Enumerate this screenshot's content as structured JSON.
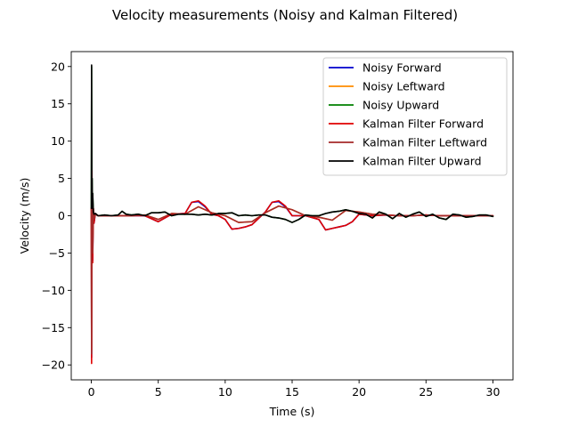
{
  "chart_data": {
    "type": "line",
    "title": "Velocity measurements (Noisy and Kalman Filtered)",
    "xlabel": "Time (s)",
    "ylabel": "Velocity (m/s)",
    "xlim": [
      -1.5,
      31.5
    ],
    "ylim": [
      -22,
      22
    ],
    "xticks": [
      0,
      5,
      10,
      15,
      20,
      25,
      30
    ],
    "yticks": [
      -20,
      -15,
      -10,
      -5,
      0,
      5,
      10,
      15,
      20
    ],
    "xtick_labels": [
      "0",
      "5",
      "10",
      "15",
      "20",
      "25",
      "30"
    ],
    "ytick_labels": [
      "−20",
      "−15",
      "−10",
      "−5",
      "0",
      "5",
      "10",
      "15",
      "20"
    ],
    "grid": false,
    "legend_position": "top-right",
    "series": [
      {
        "name": "Noisy Forward",
        "color": "#0000cd",
        "x": [
          0,
          0.02,
          0.04,
          0.06,
          0.08,
          0.1,
          0.15,
          0.2,
          0.3,
          0.5,
          1,
          2,
          3,
          4,
          5,
          6,
          7,
          7.5,
          8,
          8.5,
          9,
          9.5,
          10,
          10.5,
          11,
          11.5,
          12,
          13,
          13.5,
          14,
          14.5,
          15,
          15.5,
          16,
          17,
          17.5,
          18,
          18.5,
          19,
          19.5,
          20,
          21,
          22,
          23,
          24,
          25,
          26,
          27,
          28,
          29,
          30
        ],
        "y": [
          1,
          -19,
          6,
          -5,
          3,
          -6,
          1,
          -1,
          0.3,
          0,
          0,
          0,
          0,
          0,
          -0.8,
          0.2,
          0.3,
          1.8,
          1.9,
          1.2,
          0.2,
          0,
          -0.5,
          -1.8,
          -1.7,
          -1.5,
          -1.2,
          0.5,
          1.8,
          1.9,
          1.2,
          0,
          0,
          0,
          -0.5,
          -1.9,
          -1.7,
          -1.5,
          -1.3,
          -0.8,
          0.2,
          0,
          0.1,
          0,
          0,
          0.1,
          0,
          0,
          0,
          0,
          0
        ]
      },
      {
        "name": "Noisy Leftward",
        "color": "#ff8c00",
        "x": [
          0,
          0.02,
          0.04,
          0.06,
          0.08,
          0.1,
          0.15,
          0.2,
          0.3,
          0.5,
          1,
          2,
          3,
          4,
          5,
          6,
          7,
          8,
          9,
          10,
          11,
          12,
          13,
          14,
          15,
          16,
          17,
          18,
          19,
          20,
          21,
          22,
          23,
          24,
          25,
          26,
          27,
          28,
          29,
          30
        ],
        "y": [
          1,
          -18,
          5,
          -4,
          2,
          -5,
          1,
          -0.5,
          0.2,
          0,
          0,
          0,
          0,
          0.1,
          -0.5,
          0.3,
          0.2,
          1.2,
          0.4,
          0,
          -0.9,
          -0.8,
          0.4,
          1.3,
          0.8,
          0,
          -0.2,
          -0.6,
          0.7,
          0.5,
          0.2,
          0.1,
          0,
          0,
          0.1,
          0,
          0,
          0,
          0,
          0
        ]
      },
      {
        "name": "Noisy Upward",
        "color": "#008000",
        "x": [
          0,
          0.02,
          0.04,
          0.06,
          0.08,
          0.1,
          0.15,
          0.2,
          0.3,
          0.5,
          1,
          1.5,
          2,
          2.3,
          2.6,
          3,
          3.5,
          4,
          4.5,
          5,
          5.5,
          6,
          6.5,
          7,
          7.5,
          8,
          8.5,
          9,
          9.5,
          10,
          10.5,
          11,
          11.5,
          12,
          12.5,
          13,
          13.5,
          14,
          14.5,
          15,
          15.5,
          16,
          16.5,
          17,
          17.5,
          18,
          18.5,
          19,
          19.5,
          20,
          20.5,
          21,
          21.5,
          22,
          22.5,
          23,
          23.5,
          24,
          24.5,
          25,
          25.5,
          26,
          26.5,
          27,
          27.5,
          28,
          28.5,
          29,
          29.5,
          30
        ],
        "y": [
          1,
          20,
          2,
          5,
          1,
          3,
          0.5,
          0.2,
          0.3,
          0,
          0.1,
          0,
          0.1,
          0.6,
          0.2,
          0.1,
          0.2,
          0,
          0.4,
          0.4,
          0.5,
          0,
          0.2,
          0.2,
          0.2,
          0.1,
          0.2,
          0.1,
          0.3,
          0.3,
          0.4,
          0,
          0.1,
          0,
          0.1,
          0.1,
          -0.2,
          -0.3,
          -0.5,
          -0.9,
          -0.5,
          0.1,
          0,
          0,
          0.3,
          0.5,
          0.6,
          0.8,
          0.6,
          0.3,
          0.2,
          -0.3,
          0.5,
          0.2,
          -0.4,
          0.3,
          -0.2,
          0.2,
          0.5,
          -0.1,
          0.2,
          -0.3,
          -0.5,
          0.2,
          0.1,
          -0.2,
          -0.1,
          0.1,
          0.1,
          -0.1
        ]
      },
      {
        "name": "Kalman Filter Forward",
        "color": "#e00000",
        "x": [
          0,
          0.02,
          0.04,
          0.06,
          0.08,
          0.1,
          0.15,
          0.2,
          0.3,
          0.5,
          1,
          2,
          3,
          4,
          5,
          6,
          7,
          7.5,
          8,
          8.5,
          9,
          9.5,
          10,
          10.5,
          11,
          11.5,
          12,
          13,
          13.5,
          14,
          14.5,
          15,
          15.5,
          16,
          17,
          17.5,
          18,
          18.5,
          19,
          19.5,
          20,
          21,
          22,
          23,
          24,
          25,
          26,
          27,
          28,
          29,
          30
        ],
        "y": [
          1,
          -19.8,
          6,
          -5,
          3,
          -6.3,
          1,
          -1,
          0.3,
          0,
          0,
          0,
          0,
          0,
          -0.8,
          0.2,
          0.3,
          1.8,
          2,
          1.3,
          0.2,
          0,
          -0.5,
          -1.8,
          -1.7,
          -1.5,
          -1.2,
          0.5,
          1.8,
          2,
          1.3,
          0,
          0,
          0,
          -0.5,
          -1.9,
          -1.7,
          -1.5,
          -1.3,
          -0.8,
          0.2,
          0,
          0.1,
          0,
          0,
          0.1,
          0,
          0,
          0,
          0,
          0
        ]
      },
      {
        "name": "Kalman Filter Leftward",
        "color": "#a52a2a",
        "x": [
          0,
          0.02,
          0.04,
          0.06,
          0.08,
          0.1,
          0.15,
          0.2,
          0.3,
          0.5,
          1,
          2,
          3,
          4,
          5,
          6,
          7,
          8,
          9,
          10,
          11,
          12,
          13,
          14,
          15,
          16,
          17,
          18,
          19,
          20,
          21,
          22,
          23,
          24,
          25,
          26,
          27,
          28,
          29,
          30
        ],
        "y": [
          1,
          -18.5,
          5,
          -4,
          2,
          -5,
          1,
          -0.5,
          0.2,
          0,
          0,
          0,
          0,
          0.1,
          -0.5,
          0.3,
          0.2,
          1.2,
          0.4,
          0,
          -0.9,
          -0.8,
          0.4,
          1.3,
          0.8,
          0,
          -0.2,
          -0.6,
          0.7,
          0.5,
          0.2,
          0.1,
          0,
          0,
          0.1,
          0,
          0,
          0,
          0,
          0
        ]
      },
      {
        "name": "Kalman Filter Upward",
        "color": "#000000",
        "x": [
          0,
          0.02,
          0.04,
          0.06,
          0.08,
          0.1,
          0.15,
          0.2,
          0.3,
          0.5,
          1,
          1.5,
          2,
          2.3,
          2.6,
          3,
          3.5,
          4,
          4.5,
          5,
          5.5,
          6,
          6.5,
          7,
          7.5,
          8,
          8.5,
          9,
          9.5,
          10,
          10.5,
          11,
          11.5,
          12,
          12.5,
          13,
          13.5,
          14,
          14.5,
          15,
          15.5,
          16,
          16.5,
          17,
          17.5,
          18,
          18.5,
          19,
          19.5,
          20,
          20.5,
          21,
          21.5,
          22,
          22.5,
          23,
          23.5,
          24,
          24.5,
          25,
          25.5,
          26,
          26.5,
          27,
          27.5,
          28,
          28.5,
          29,
          29.5,
          30
        ],
        "y": [
          1,
          20.2,
          2,
          5,
          1,
          3,
          0.5,
          0.2,
          0.3,
          0,
          0.1,
          0,
          0.1,
          0.6,
          0.2,
          0.1,
          0.2,
          0,
          0.4,
          0.4,
          0.5,
          0,
          0.2,
          0.2,
          0.2,
          0.1,
          0.2,
          0.1,
          0.3,
          0.3,
          0.4,
          0,
          0.1,
          0,
          0.1,
          0.1,
          -0.2,
          -0.3,
          -0.5,
          -0.9,
          -0.5,
          0.1,
          0,
          0,
          0.3,
          0.5,
          0.6,
          0.8,
          0.6,
          0.3,
          0.2,
          -0.3,
          0.5,
          0.2,
          -0.4,
          0.3,
          -0.2,
          0.2,
          0.5,
          -0.1,
          0.2,
          -0.3,
          -0.5,
          0.2,
          0.1,
          -0.2,
          -0.1,
          0.1,
          0.1,
          -0.1
        ]
      }
    ]
  }
}
